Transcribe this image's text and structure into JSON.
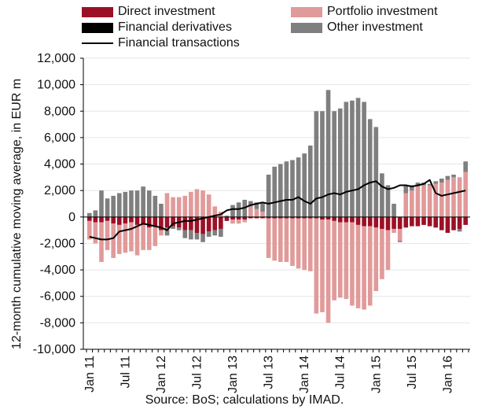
{
  "chart_data": {
    "type": "bar",
    "stacked": true,
    "ylabel": "12-month cumulative moving average, in EUR m",
    "source": "Source: BoS; calculations by IMAD.",
    "ylim": [
      -10000,
      12000
    ],
    "yticks": [
      "12,000",
      "10,000",
      "8,000",
      "6,000",
      "4,000",
      "2,000",
      "0",
      "-2,000",
      "-4,000",
      "-6,000",
      "-8,000",
      "-10,000"
    ],
    "ytick_values": [
      12000,
      10000,
      8000,
      6000,
      4000,
      2000,
      0,
      -2000,
      -4000,
      -6000,
      -8000,
      -10000
    ],
    "xticks": [
      "Jan 11",
      "Jul 11",
      "Jan 12",
      "Jul 12",
      "Jan 13",
      "Jul 13",
      "Jan 14",
      "Jul 14",
      "Jan 15",
      "Jul 15",
      "Jan 16"
    ],
    "xtick_index": [
      0,
      6,
      12,
      18,
      24,
      30,
      36,
      42,
      48,
      54,
      60
    ],
    "legend": [
      {
        "name": "Direct investment",
        "color": "#9c1026",
        "kind": "bar"
      },
      {
        "name": "Portfolio investment",
        "color": "#e19a9a",
        "kind": "bar"
      },
      {
        "name": "Financial derivatives",
        "color": "#000000",
        "kind": "bar"
      },
      {
        "name": "Other investment",
        "color": "#7f7f7f",
        "kind": "bar"
      },
      {
        "name": "Financial transactions",
        "color": "#000000",
        "kind": "line"
      }
    ],
    "direct": [
      -300,
      -400,
      -400,
      -300,
      -500,
      -600,
      -500,
      -400,
      -600,
      -600,
      -800,
      -700,
      -1000,
      -800,
      -700,
      -800,
      -1000,
      -1000,
      -1200,
      -1300,
      -1100,
      -1000,
      -900,
      -300,
      -200,
      -200,
      -200,
      -100,
      -100,
      -100,
      -100,
      -100,
      -100,
      -100,
      -100,
      -100,
      -100,
      -100,
      -100,
      -200,
      -200,
      -300,
      -400,
      -400,
      -400,
      -600,
      -700,
      -700,
      -800,
      -900,
      -1000,
      -900,
      -900,
      -800,
      -700,
      -700,
      -600,
      -700,
      -800,
      -1000,
      -1200,
      -1000,
      -900,
      -600
    ],
    "portfolio": [
      -1400,
      -1600,
      -3000,
      -2200,
      -2600,
      -2200,
      -2200,
      -2200,
      -2300,
      -1900,
      -1700,
      -1500,
      -400,
      1800,
      1500,
      1500,
      1600,
      1900,
      2100,
      2000,
      1700,
      800,
      400,
      0,
      -300,
      -300,
      -200,
      800,
      600,
      400,
      -3000,
      -3200,
      -3300,
      -3300,
      -3600,
      -3800,
      -3900,
      -4000,
      -7200,
      -7000,
      -7800,
      -6000,
      -5700,
      -5800,
      -6300,
      -6300,
      -6300,
      -6000,
      -4800,
      -3800,
      -3000,
      -300,
      -900,
      1800,
      2000,
      2300,
      2400,
      2400,
      2500,
      2600,
      2800,
      3000,
      3000,
      3400
    ],
    "derivatives": [
      0,
      0,
      0,
      0,
      0,
      0,
      0,
      0,
      0,
      0,
      0,
      0,
      0,
      0,
      0,
      0,
      0,
      0,
      0,
      0,
      0,
      0,
      0,
      0,
      0,
      0,
      0,
      0,
      0,
      0,
      0,
      0,
      0,
      0,
      0,
      0,
      0,
      0,
      0,
      0,
      0,
      0,
      0,
      0,
      0,
      0,
      0,
      0,
      0,
      0,
      0,
      0,
      0,
      0,
      0,
      0,
      0,
      0,
      0,
      0,
      0,
      0,
      0,
      0
    ],
    "other": [
      300,
      500,
      2000,
      1400,
      1600,
      1800,
      1900,
      2000,
      2000,
      2300,
      2000,
      1600,
      1000,
      -600,
      -200,
      -200,
      -600,
      -700,
      -500,
      -600,
      -400,
      -400,
      -600,
      100,
      900,
      1100,
      1300,
      400,
      500,
      700,
      3200,
      3800,
      4000,
      4200,
      4300,
      4500,
      4800,
      5400,
      8000,
      8000,
      9600,
      8000,
      8200,
      8700,
      8800,
      9000,
      8700,
      7400,
      6800,
      3300,
      2400,
      1000,
      -100,
      600,
      400,
      300,
      200,
      100,
      200,
      300,
      300,
      200,
      -200,
      800
    ],
    "financial_transactions": [
      -1500,
      -1600,
      -1700,
      -1700,
      -1600,
      -1100,
      -1000,
      -900,
      -700,
      -500,
      -600,
      -700,
      -800,
      -1000,
      -500,
      -400,
      -300,
      -300,
      -200,
      -100,
      0,
      100,
      200,
      500,
      600,
      600,
      700,
      900,
      1000,
      1100,
      1000,
      1100,
      1200,
      1300,
      1300,
      1500,
      1200,
      1000,
      1400,
      1500,
      1700,
      1800,
      1700,
      1900,
      2000,
      2100,
      2400,
      2600,
      2700,
      2300,
      2100,
      2200,
      2400,
      2400,
      2300,
      2400,
      2500,
      2800,
      1800,
      1600,
      1700,
      1800,
      1900,
      2000
    ]
  }
}
